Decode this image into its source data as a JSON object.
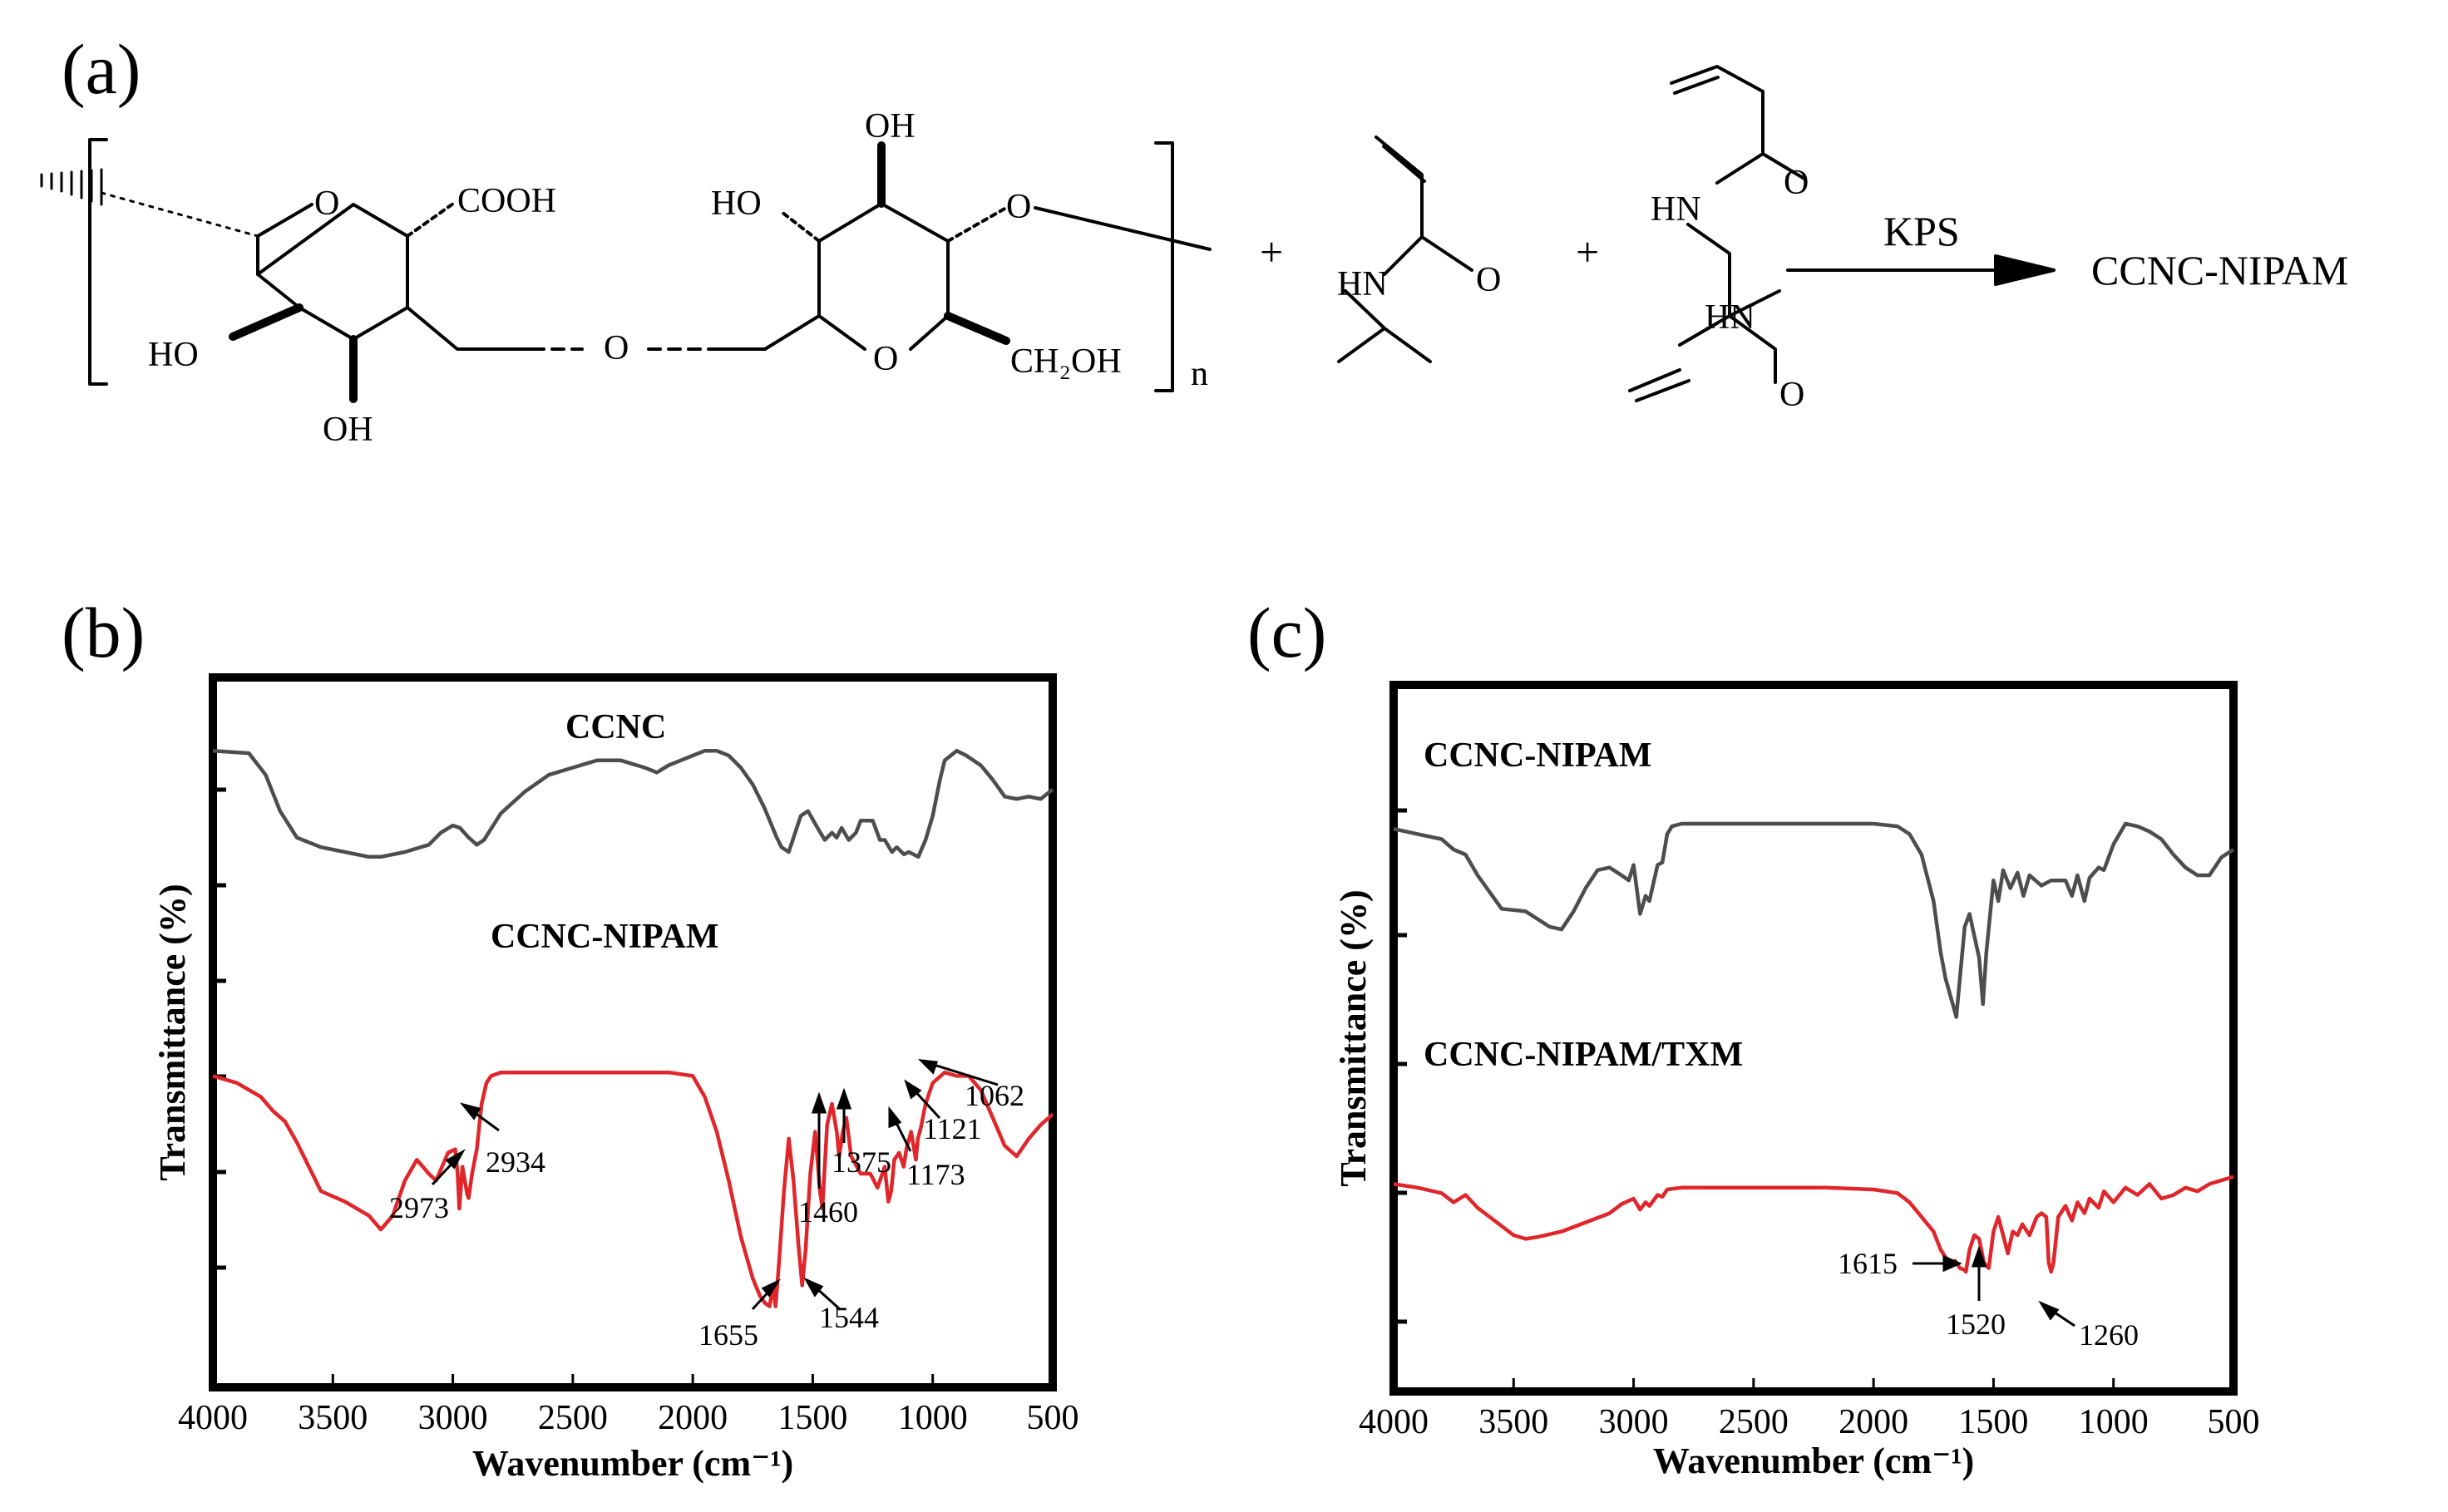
{
  "panels": {
    "a": "(a)",
    "b": "(b)",
    "c": "(c)"
  },
  "scheme": {
    "cooh": "COOH",
    "oh_top": "OH",
    "ho_left2": "HO",
    "ho_left1": "HO",
    "oh_bottom": "OH",
    "o_ring1": "O",
    "o_bridge": "O",
    "o_ring2": "O",
    "o_link": "O",
    "ch2oh": "CH₂OH",
    "n_subscript": "n",
    "plus1": "+",
    "plus2": "+",
    "hn_nipam": "HN",
    "o_nipam": "O",
    "hn_mba1": "HN",
    "o_mba1": "O",
    "hn_mba2": "HN",
    "o_mba2": "O",
    "catalyst": "KPS",
    "product": "CCNC-NIPAM"
  },
  "chart_data": [
    {
      "type": "line",
      "panel": "(b)",
      "xlabel": "Wavenumber (cm⁻¹)",
      "ylabel": "Transmittance (%)",
      "xlim": [
        4000,
        500
      ],
      "ylim": [
        0,
        1
      ],
      "x_reversed": true,
      "grid": false,
      "xticks": [
        4000,
        3500,
        3000,
        2500,
        2000,
        1500,
        1000,
        500
      ],
      "series": [
        {
          "name": "CCNC",
          "color": "#4d4d4d",
          "x": [
            4000,
            3850,
            3780,
            3720,
            3650,
            3550,
            3450,
            3350,
            3300,
            3200,
            3100,
            3050,
            3000,
            2970,
            2934,
            2900,
            2870,
            2800,
            2700,
            2600,
            2500,
            2400,
            2300,
            2200,
            2150,
            2100,
            2000,
            1950,
            1900,
            1850,
            1800,
            1750,
            1700,
            1650,
            1630,
            1600,
            1550,
            1520,
            1480,
            1450,
            1420,
            1400,
            1380,
            1350,
            1320,
            1300,
            1250,
            1220,
            1200,
            1170,
            1150,
            1120,
            1100,
            1060,
            1030,
            1000,
            970,
            950,
            900,
            860,
            800,
            750,
            700,
            650,
            600,
            550,
            500
          ],
          "y": [
            0.92,
            0.91,
            0.82,
            0.67,
            0.56,
            0.52,
            0.5,
            0.48,
            0.48,
            0.5,
            0.53,
            0.58,
            0.61,
            0.6,
            0.56,
            0.53,
            0.55,
            0.66,
            0.75,
            0.82,
            0.85,
            0.88,
            0.88,
            0.85,
            0.83,
            0.86,
            0.9,
            0.92,
            0.92,
            0.9,
            0.85,
            0.78,
            0.68,
            0.56,
            0.52,
            0.5,
            0.65,
            0.67,
            0.6,
            0.55,
            0.58,
            0.56,
            0.6,
            0.55,
            0.58,
            0.63,
            0.63,
            0.55,
            0.55,
            0.5,
            0.52,
            0.49,
            0.5,
            0.48,
            0.55,
            0.65,
            0.8,
            0.88,
            0.92,
            0.9,
            0.86,
            0.8,
            0.73,
            0.72,
            0.73,
            0.72,
            0.76
          ]
        },
        {
          "name": "CCNC-NIPAM",
          "color": "#e0262b",
          "x": [
            4000,
            3900,
            3850,
            3800,
            3750,
            3700,
            3650,
            3550,
            3450,
            3350,
            3300,
            3250,
            3200,
            3150,
            3100,
            3070,
            3020,
            2990,
            2980,
            2973,
            2960,
            2940,
            2934,
            2920,
            2900,
            2880,
            2860,
            2840,
            2800,
            2700,
            2500,
            2300,
            2100,
            2000,
            1950,
            1900,
            1850,
            1800,
            1750,
            1720,
            1700,
            1680,
            1665,
            1655,
            1640,
            1620,
            1600,
            1580,
            1560,
            1544,
            1530,
            1510,
            1490,
            1470,
            1460,
            1440,
            1420,
            1400,
            1390,
            1375,
            1360,
            1340,
            1300,
            1260,
            1230,
            1200,
            1185,
            1173,
            1160,
            1140,
            1121,
            1110,
            1090,
            1070,
            1062,
            1050,
            1030,
            1000,
            950,
            900,
            850,
            800,
            750,
            700,
            650,
            600,
            550,
            500
          ],
          "y": [
            0.68,
            0.66,
            0.64,
            0.62,
            0.58,
            0.55,
            0.49,
            0.35,
            0.32,
            0.28,
            0.24,
            0.28,
            0.38,
            0.44,
            0.4,
            0.38,
            0.46,
            0.47,
            0.4,
            0.3,
            0.42,
            0.34,
            0.33,
            0.4,
            0.47,
            0.6,
            0.66,
            0.68,
            0.69,
            0.69,
            0.69,
            0.69,
            0.69,
            0.68,
            0.62,
            0.52,
            0.38,
            0.22,
            0.1,
            0.05,
            0.03,
            0.02,
            0.08,
            0.02,
            0.15,
            0.35,
            0.5,
            0.38,
            0.2,
            0.08,
            0.18,
            0.4,
            0.52,
            0.35,
            0.3,
            0.54,
            0.6,
            0.52,
            0.45,
            0.52,
            0.56,
            0.45,
            0.4,
            0.4,
            0.36,
            0.42,
            0.32,
            0.35,
            0.44,
            0.46,
            0.42,
            0.47,
            0.52,
            0.44,
            0.5,
            0.53,
            0.6,
            0.66,
            0.69,
            0.68,
            0.68,
            0.64,
            0.56,
            0.48,
            0.45,
            0.5,
            0.54,
            0.57
          ]
        }
      ],
      "annotations": [
        "2973",
        "2934",
        "1655",
        "1544",
        "1460",
        "1375",
        "1173",
        "1121",
        "1062"
      ]
    },
    {
      "type": "line",
      "panel": "(c)",
      "xlabel": "Wavenumber (cm⁻¹)",
      "ylabel": "Transmittance (%)",
      "xlim": [
        4000,
        500
      ],
      "ylim": [
        0,
        1
      ],
      "x_reversed": true,
      "grid": false,
      "xticks": [
        4000,
        3500,
        3000,
        2500,
        2000,
        1500,
        1000,
        500
      ],
      "series": [
        {
          "name": "CCNC-NIPAM",
          "color": "#4d4d4d",
          "x": [
            4000,
            3900,
            3800,
            3750,
            3700,
            3650,
            3550,
            3450,
            3350,
            3300,
            3250,
            3200,
            3150,
            3100,
            3050,
            3020,
            3000,
            2973,
            2950,
            2934,
            2900,
            2880,
            2860,
            2840,
            2800,
            2600,
            2400,
            2200,
            2000,
            1900,
            1850,
            1800,
            1750,
            1720,
            1700,
            1670,
            1655,
            1640,
            1620,
            1600,
            1560,
            1544,
            1530,
            1500,
            1480,
            1460,
            1430,
            1400,
            1375,
            1350,
            1300,
            1260,
            1200,
            1173,
            1150,
            1121,
            1100,
            1062,
            1040,
            1000,
            950,
            900,
            850,
            800,
            750,
            700,
            650,
            600,
            550,
            500
          ],
          "y": [
            0.88,
            0.86,
            0.84,
            0.8,
            0.78,
            0.7,
            0.57,
            0.56,
            0.5,
            0.49,
            0.56,
            0.65,
            0.72,
            0.73,
            0.7,
            0.68,
            0.74,
            0.55,
            0.62,
            0.6,
            0.74,
            0.75,
            0.86,
            0.89,
            0.9,
            0.9,
            0.9,
            0.9,
            0.9,
            0.89,
            0.86,
            0.78,
            0.6,
            0.4,
            0.3,
            0.2,
            0.15,
            0.3,
            0.5,
            0.55,
            0.38,
            0.2,
            0.4,
            0.68,
            0.6,
            0.72,
            0.65,
            0.71,
            0.62,
            0.7,
            0.66,
            0.68,
            0.68,
            0.62,
            0.7,
            0.6,
            0.69,
            0.73,
            0.72,
            0.82,
            0.9,
            0.89,
            0.87,
            0.84,
            0.78,
            0.73,
            0.7,
            0.7,
            0.77,
            0.8
          ]
        },
        {
          "name": "CCNC-NIPAM/TXM",
          "color": "#e0262b",
          "x": [
            4000,
            3900,
            3800,
            3750,
            3700,
            3650,
            3550,
            3500,
            3450,
            3400,
            3300,
            3200,
            3100,
            3050,
            3000,
            2973,
            2950,
            2934,
            2900,
            2880,
            2860,
            2800,
            2600,
            2400,
            2200,
            2000,
            1900,
            1850,
            1800,
            1750,
            1720,
            1700,
            1680,
            1660,
            1640,
            1620,
            1615,
            1600,
            1580,
            1560,
            1540,
            1520,
            1500,
            1480,
            1460,
            1440,
            1420,
            1400,
            1380,
            1350,
            1320,
            1300,
            1280,
            1270,
            1260,
            1250,
            1230,
            1200,
            1173,
            1150,
            1121,
            1100,
            1062,
            1040,
            1000,
            950,
            900,
            850,
            800,
            750,
            700,
            650,
            600,
            550,
            500
          ],
          "y": [
            0.48,
            0.46,
            0.43,
            0.38,
            0.42,
            0.35,
            0.25,
            0.2,
            0.18,
            0.19,
            0.22,
            0.27,
            0.32,
            0.37,
            0.4,
            0.34,
            0.38,
            0.36,
            0.42,
            0.41,
            0.45,
            0.46,
            0.46,
            0.46,
            0.46,
            0.45,
            0.43,
            0.38,
            0.3,
            0.22,
            0.12,
            0.08,
            0.04,
            0.06,
            0.02,
            0.01,
            0.0,
            0.12,
            0.2,
            0.18,
            0.05,
            0.02,
            0.22,
            0.3,
            0.2,
            0.1,
            0.22,
            0.2,
            0.26,
            0.2,
            0.3,
            0.32,
            0.3,
            0.05,
            0.0,
            0.05,
            0.3,
            0.36,
            0.28,
            0.38,
            0.32,
            0.4,
            0.35,
            0.44,
            0.38,
            0.46,
            0.42,
            0.48,
            0.4,
            0.42,
            0.46,
            0.44,
            0.48,
            0.5,
            0.52
          ]
        }
      ],
      "annotations": [
        "1615",
        "1520",
        "1260"
      ]
    }
  ]
}
